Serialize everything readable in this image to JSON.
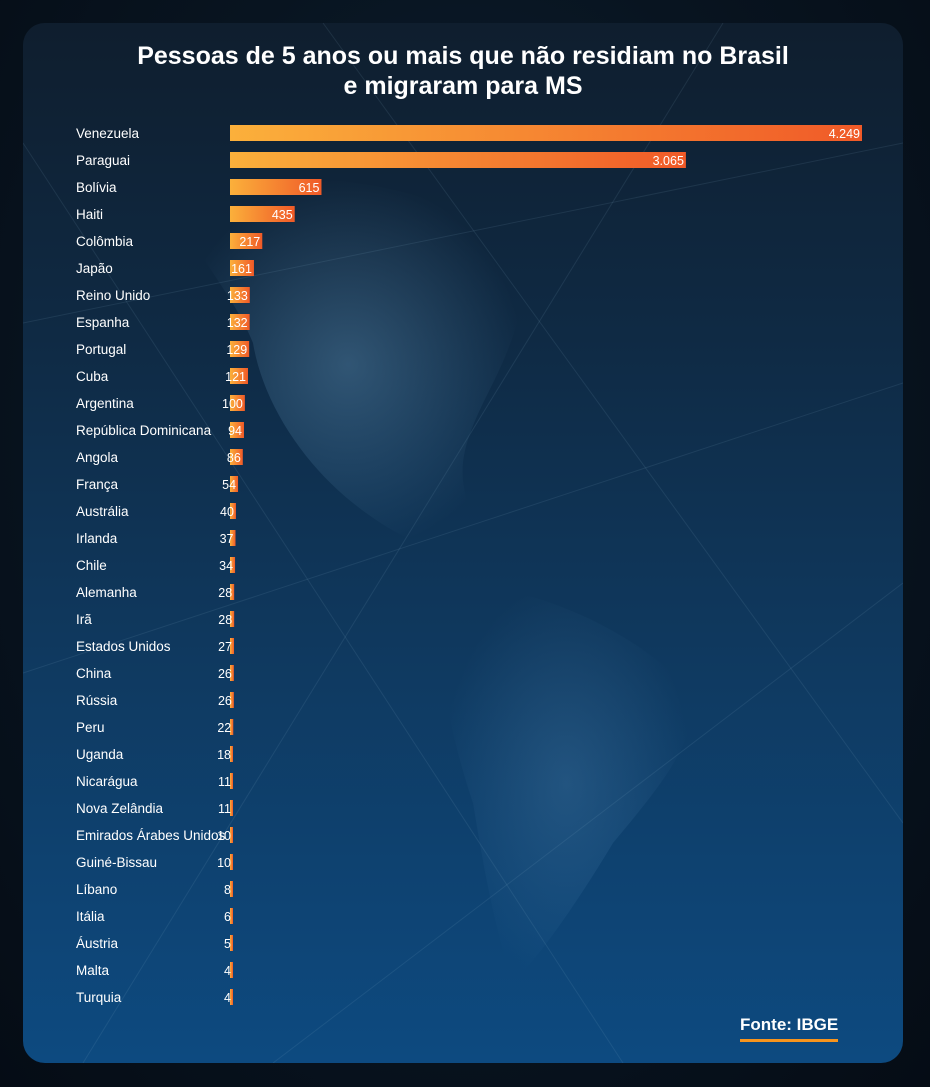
{
  "title_line1": "Pessoas de 5 anos ou mais que não residiam no Brasil",
  "title_line2": "e migraram para MS",
  "source": "Fonte: IBGE",
  "chart_data": {
    "type": "bar",
    "orientation": "horizontal",
    "title": "Pessoas de 5 anos ou mais que não residiam no Brasil e migraram para MS",
    "xlabel": "",
    "ylabel": "",
    "grid": false,
    "xlim": [
      0,
      4249
    ],
    "bar_gradient": [
      "#fbb03b",
      "#f05a28"
    ],
    "categories": [
      "Venezuela",
      "Paraguai",
      "Bolívia",
      "Haiti",
      "Colômbia",
      "Japão",
      "Reino Unido",
      "Espanha",
      "Portugal",
      "Cuba",
      "Argentina",
      "República Dominicana",
      "Angola",
      "França",
      "Austrália",
      "Irlanda",
      "Chile",
      "Alemanha",
      "Irã",
      "Estados Unidos",
      "China",
      "Rússia",
      "Peru",
      "Uganda",
      "Nicarágua",
      "Nova Zelândia",
      "Emirados Árabes Unidos",
      "Guiné-Bissau",
      "Líbano",
      "Itália",
      "Áustria",
      "Malta",
      "Turquia"
    ],
    "values": [
      4249,
      3065,
      615,
      435,
      217,
      161,
      133,
      132,
      129,
      121,
      100,
      94,
      86,
      54,
      40,
      37,
      34,
      28,
      28,
      27,
      26,
      26,
      22,
      18,
      11,
      11,
      10,
      10,
      8,
      6,
      5,
      4,
      4
    ],
    "value_labels": [
      "4.249",
      "3.065",
      "615",
      "435",
      "217",
      "161",
      "133",
      "132",
      "129",
      "121",
      "100",
      "94",
      "86",
      "54",
      "40",
      "37",
      "34",
      "28",
      "28",
      "27",
      "26",
      "26",
      "22",
      "18",
      "11",
      "11",
      "10",
      "10",
      "8",
      "6",
      "5",
      "4",
      "4"
    ]
  }
}
